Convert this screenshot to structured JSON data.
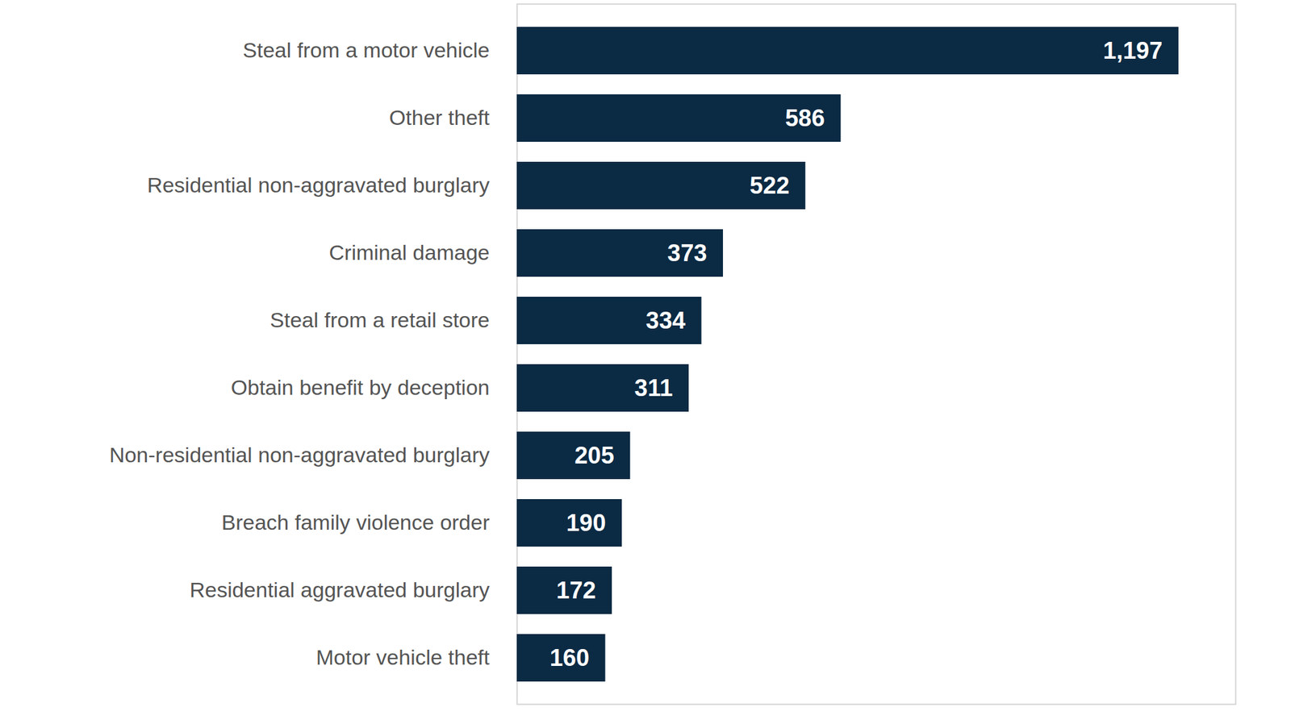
{
  "chart_data": {
    "type": "bar",
    "orientation": "horizontal",
    "categories": [
      "Steal from a motor vehicle",
      "Other theft",
      "Residential non-aggravated burglary",
      "Criminal damage",
      "Steal from a retail store",
      "Obtain benefit by deception",
      "Non-residential non-aggravated burglary",
      "Breach family violence order",
      "Residential aggravated burglary",
      "Motor vehicle theft"
    ],
    "values": [
      1197,
      586,
      522,
      373,
      334,
      311,
      205,
      190,
      172,
      160
    ],
    "value_labels": [
      "1,197",
      "586",
      "522",
      "373",
      "334",
      "311",
      "205",
      "190",
      "172",
      "160"
    ],
    "color": "#0b2a43",
    "xlim": [
      0,
      1300
    ],
    "grid": false,
    "data_labels": true,
    "tick_labels": "y"
  }
}
